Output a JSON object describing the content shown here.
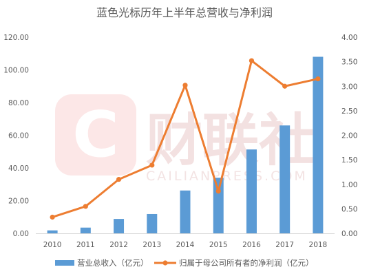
{
  "chart_data": {
    "type": "bar",
    "title": "蓝色光标历年上半年总营收与净利润",
    "categories": [
      "2010",
      "2011",
      "2012",
      "2013",
      "2014",
      "2015",
      "2016",
      "2017",
      "2018"
    ],
    "y_left": {
      "ylim": [
        0,
        120
      ],
      "ticks": [
        "0.00",
        "20.00",
        "40.00",
        "60.00",
        "80.00",
        "100.00",
        "120.00"
      ]
    },
    "y_right": {
      "ylim": [
        0,
        4
      ],
      "ticks": [
        "0.00",
        "0.50",
        "1.00",
        "1.50",
        "2.00",
        "2.50",
        "3.00",
        "3.50",
        "4.00"
      ]
    },
    "grid": false,
    "legend_position": "bottom",
    "series": [
      {
        "name": "营业总收入（亿元）",
        "type": "bar",
        "axis": "left",
        "color": "#5B9BD5",
        "values": [
          1.8,
          3.5,
          8.8,
          11.8,
          26.2,
          34.0,
          51.3,
          66.0,
          108.0
        ]
      },
      {
        "name": "归属于母公司所有者的净利润（亿元）",
        "type": "line",
        "axis": "right",
        "color": "#ED7D31",
        "values": [
          0.33,
          0.55,
          1.1,
          1.39,
          3.02,
          0.86,
          3.52,
          3.0,
          3.15
        ]
      }
    ]
  },
  "watermark": {
    "logo_letter": "C",
    "brand": "财联社",
    "domain": "CAILIANPRESS.COM"
  }
}
